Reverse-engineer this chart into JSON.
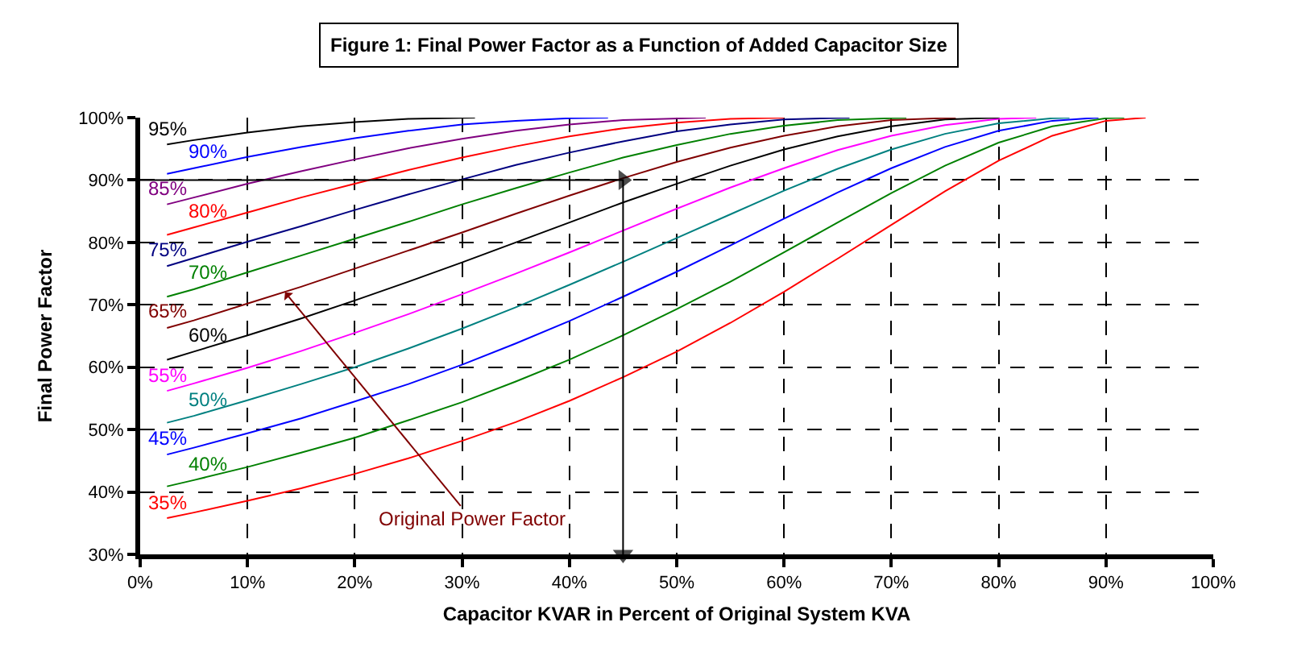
{
  "chart_data": {
    "type": "line",
    "title": "Figure 1: Final Power Factor as a Function of Added Capacitor Size",
    "xlabel": "Capacitor KVAR in Percent of Original System KVA",
    "ylabel": "Final Power Factor",
    "xlim": [
      0,
      100
    ],
    "ylim": [
      30,
      100
    ],
    "xticks": [
      {
        "value": 0,
        "label": "0%"
      },
      {
        "value": 10,
        "label": "10%"
      },
      {
        "value": 20,
        "label": "20%"
      },
      {
        "value": 30,
        "label": "30%"
      },
      {
        "value": 40,
        "label": "40%"
      },
      {
        "value": 50,
        "label": "50%"
      },
      {
        "value": 60,
        "label": "60%"
      },
      {
        "value": 70,
        "label": "70%"
      },
      {
        "value": 80,
        "label": "80%"
      },
      {
        "value": 90,
        "label": "90%"
      },
      {
        "value": 100,
        "label": "100%"
      }
    ],
    "yticks": [
      {
        "value": 30,
        "label": "30%"
      },
      {
        "value": 40,
        "label": "40%"
      },
      {
        "value": 50,
        "label": "50%"
      },
      {
        "value": 60,
        "label": "60%"
      },
      {
        "value": 70,
        "label": "70%"
      },
      {
        "value": 80,
        "label": "80%"
      },
      {
        "value": 90,
        "label": "90%"
      },
      {
        "value": 100,
        "label": "100%"
      }
    ],
    "grid": true,
    "legend": false,
    "series": [
      {
        "name": "35%",
        "color": "#ff0000",
        "x": [
          2.5,
          5,
          10,
          15,
          20,
          25,
          30,
          35,
          40,
          45,
          50,
          55,
          60,
          65,
          70,
          75,
          80,
          85,
          90,
          93.7
        ],
        "values": [
          35.8,
          36.7,
          38.6,
          40.6,
          42.9,
          45.4,
          48.2,
          51.2,
          54.6,
          58.4,
          62.5,
          67.1,
          72.1,
          77.4,
          82.8,
          88.2,
          93.1,
          97.1,
          99.5,
          100
        ]
      },
      {
        "name": "40%",
        "color": "#008000",
        "x": [
          2.5,
          5,
          10,
          15,
          20,
          25,
          30,
          35,
          40,
          45,
          50,
          55,
          60,
          65,
          70,
          75,
          80,
          85,
          90,
          91.7
        ],
        "values": [
          40.9,
          41.9,
          44.0,
          46.3,
          48.7,
          51.5,
          54.4,
          57.7,
          61.2,
          65.1,
          69.3,
          73.7,
          78.4,
          83.2,
          87.9,
          92.3,
          96.0,
          98.6,
          99.9,
          100
        ]
      },
      {
        "name": "45%",
        "color": "#0000ff",
        "x": [
          2.5,
          5,
          10,
          15,
          20,
          25,
          30,
          35,
          40,
          45,
          50,
          55,
          60,
          65,
          70,
          75,
          80,
          85,
          89.3
        ],
        "values": [
          46.0,
          47.1,
          49.4,
          51.8,
          54.5,
          57.3,
          60.4,
          63.8,
          67.4,
          71.3,
          75.3,
          79.5,
          83.8,
          88.0,
          91.9,
          95.3,
          97.9,
          99.5,
          100
        ]
      },
      {
        "name": "50%",
        "color": "#008080",
        "x": [
          2.5,
          5,
          10,
          15,
          20,
          25,
          30,
          35,
          40,
          45,
          50,
          55,
          60,
          65,
          70,
          75,
          80,
          85,
          86.6
        ],
        "values": [
          51.1,
          52.2,
          54.7,
          57.3,
          60.0,
          63.0,
          66.2,
          69.6,
          73.2,
          76.9,
          80.7,
          84.5,
          88.3,
          91.8,
          94.9,
          97.4,
          99.1,
          99.9,
          100
        ]
      },
      {
        "name": "55%",
        "color": "#ff00ff",
        "x": [
          2.5,
          5,
          10,
          15,
          20,
          25,
          30,
          35,
          40,
          45,
          50,
          55,
          60,
          65,
          70,
          75,
          80,
          83.5
        ],
        "values": [
          56.2,
          57.4,
          59.9,
          62.6,
          65.5,
          68.5,
          71.7,
          75.0,
          78.4,
          81.9,
          85.4,
          88.8,
          91.9,
          94.8,
          97.1,
          98.8,
          99.8,
          100
        ]
      },
      {
        "name": "60%",
        "color": "#000000",
        "x": [
          2.5,
          5,
          10,
          15,
          20,
          25,
          30,
          35,
          40,
          45,
          50,
          55,
          60,
          65,
          70,
          75,
          80
        ],
        "values": [
          61.2,
          62.5,
          65.1,
          67.8,
          70.7,
          73.7,
          76.8,
          80.0,
          83.2,
          86.4,
          89.4,
          92.3,
          94.9,
          97.0,
          98.6,
          99.7,
          100
        ]
      },
      {
        "name": "65%",
        "color": "#800000",
        "x": [
          2.5,
          5,
          10,
          15,
          20,
          25,
          30,
          35,
          40,
          45,
          50,
          55,
          60,
          65,
          70,
          76
        ],
        "values": [
          66.3,
          67.5,
          70.2,
          72.9,
          75.8,
          78.7,
          81.6,
          84.6,
          87.5,
          90.3,
          92.9,
          95.2,
          97.1,
          98.6,
          99.6,
          100
        ]
      },
      {
        "name": "70%",
        "color": "#008000",
        "x": [
          2.5,
          5,
          10,
          15,
          20,
          25,
          30,
          35,
          40,
          45,
          50,
          55,
          60,
          65,
          71.4
        ],
        "values": [
          71.3,
          72.5,
          75.2,
          77.9,
          80.6,
          83.3,
          86.1,
          88.7,
          91.2,
          93.6,
          95.6,
          97.4,
          98.7,
          99.6,
          100
        ]
      },
      {
        "name": "75%",
        "color": "#000080",
        "x": [
          2.5,
          5,
          10,
          15,
          20,
          25,
          30,
          35,
          40,
          45,
          50,
          55,
          60,
          66.1
        ],
        "values": [
          76.2,
          77.5,
          80.1,
          82.6,
          85.2,
          87.7,
          90.1,
          92.4,
          94.4,
          96.2,
          97.8,
          98.9,
          99.7,
          100
        ]
      },
      {
        "name": "80%",
        "color": "#ff0000",
        "x": [
          2.5,
          5,
          10,
          15,
          20,
          25,
          30,
          35,
          40,
          45,
          50,
          55,
          60
        ],
        "values": [
          81.2,
          82.4,
          84.8,
          87.2,
          89.4,
          91.6,
          93.6,
          95.4,
          97.0,
          98.3,
          99.2,
          99.8,
          100
        ]
      },
      {
        "name": "85%",
        "color": "#800080",
        "x": [
          2.5,
          5,
          10,
          15,
          20,
          25,
          30,
          35,
          40,
          45,
          52.7
        ],
        "values": [
          86.1,
          87.2,
          89.4,
          91.4,
          93.3,
          95.1,
          96.6,
          97.9,
          98.9,
          99.6,
          100
        ]
      },
      {
        "name": "90%",
        "color": "#0000ff",
        "x": [
          2.5,
          5,
          10,
          15,
          20,
          25,
          30,
          35,
          40,
          43.6
        ],
        "values": [
          91.0,
          91.9,
          93.7,
          95.3,
          96.7,
          97.9,
          98.9,
          99.5,
          99.9,
          100
        ]
      },
      {
        "name": "95%",
        "color": "#000000",
        "x": [
          2.5,
          5,
          10,
          15,
          20,
          25,
          31.2
        ],
        "values": [
          95.7,
          96.4,
          97.6,
          98.6,
          99.3,
          99.8,
          100
        ]
      },
      {
        "color": "#000000",
        "marker": "triangle",
        "x": [
          0,
          45,
          45
        ],
        "values": [
          90,
          90,
          30
        ]
      }
    ],
    "annotations": [
      {
        "text": "Original Power Factor",
        "x": 13.5,
        "y": 72
      }
    ]
  }
}
